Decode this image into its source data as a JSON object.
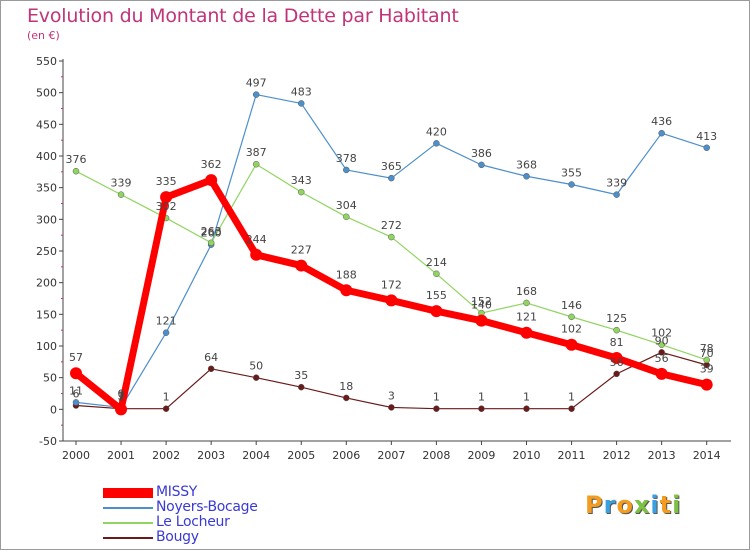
{
  "header": {
    "title": "Evolution du Montant de la Dette par Habitant",
    "unit": "(en €)"
  },
  "chart_data": {
    "type": "line",
    "title": "Evolution du Montant de la Dette par Habitant",
    "subtitle": "(en €)",
    "xlabel": "",
    "ylabel": "",
    "x": [
      "2000",
      "2001",
      "2002",
      "2003",
      "2004",
      "2005",
      "2006",
      "2007",
      "2008",
      "2009",
      "2010",
      "2011",
      "2012",
      "2013",
      "2014"
    ],
    "ylim": [
      -50,
      550
    ],
    "yticks": [
      "-50",
      "0",
      "50",
      "100",
      "150",
      "200",
      "250",
      "300",
      "350",
      "400",
      "450",
      "500",
      "550"
    ],
    "grid": false,
    "legend": "bottom-left",
    "series": [
      {
        "name": "MISSY",
        "color": "#ff0000",
        "values": [
          57,
          0,
          335,
          362,
          244,
          227,
          188,
          172,
          155,
          140,
          121,
          102,
          81,
          56,
          39
        ],
        "labels": [
          "57",
          "0",
          "335",
          "362",
          "244",
          "227",
          "188",
          "172",
          "155",
          "140",
          "121",
          "102",
          "81",
          "56",
          "39"
        ]
      },
      {
        "name": "Noyers-Bocage",
        "color": "#4d8fcb",
        "values": [
          11,
          3,
          121,
          260,
          497,
          483,
          378,
          365,
          420,
          386,
          368,
          355,
          339,
          436,
          413
        ],
        "labels": [
          "11",
          "3",
          "121",
          "260",
          "497",
          "483",
          "378",
          "365",
          "420",
          "386",
          "368",
          "355",
          "339",
          "436",
          "413"
        ]
      },
      {
        "name": "Le Locheur",
        "color": "#90d560",
        "values": [
          376,
          339,
          302,
          263,
          387,
          343,
          304,
          272,
          214,
          152,
          168,
          146,
          125,
          102,
          78
        ],
        "labels": [
          "376",
          "339",
          "302",
          "263",
          "387",
          "343",
          "304",
          "272",
          "214",
          "152",
          "168",
          "146",
          "125",
          "102",
          "78"
        ]
      },
      {
        "name": "Bougy",
        "color": "#6b1a1a",
        "values": [
          6,
          1,
          1,
          64,
          50,
          35,
          18,
          3,
          1,
          1,
          1,
          1,
          56,
          90,
          70
        ],
        "labels": [
          "6",
          "1",
          "1",
          "64",
          "50",
          "35",
          "18",
          "3",
          "1",
          "1",
          "1",
          "1",
          "56",
          "90",
          "70"
        ]
      }
    ]
  },
  "logo": {
    "letters": [
      "P",
      "r",
      "o",
      "x",
      "i",
      "t",
      "i"
    ],
    "colors": [
      "#f39c1f",
      "#3aa0e0",
      "#f39c1f",
      "#7cc242",
      "#3aa0e0",
      "#f39c1f",
      "#7cc242"
    ]
  }
}
